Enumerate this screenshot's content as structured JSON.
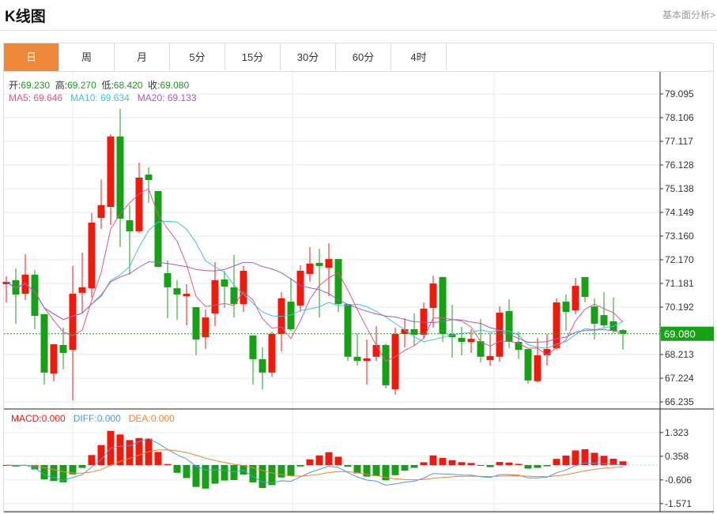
{
  "header": {
    "title": "K线图",
    "link": "基本面分析>"
  },
  "tabs": [
    {
      "label": "日",
      "active": true
    },
    {
      "label": "周"
    },
    {
      "label": "月"
    },
    {
      "label": "5分"
    },
    {
      "label": "15分"
    },
    {
      "label": "30分"
    },
    {
      "label": "60分"
    },
    {
      "label": "4时"
    }
  ],
  "info": {
    "open_label": "开:",
    "open": "69.230",
    "high_label": "高:",
    "high": "69.270",
    "low_label": "低:",
    "low": "68.420",
    "close_label": "收:",
    "close": "69.080",
    "ma5": "MA5: 69.646",
    "ma10": "MA10: 69.634",
    "ma20": "MA20: 69.133",
    "macd": "MACD:0.000",
    "diff": "DIFF:0.000",
    "dea": "DEA:0.000"
  },
  "colors": {
    "up": "#ee1a0e",
    "down": "#15a015",
    "ma5": "#e0558a",
    "ma10": "#3fc3d6",
    "ma20": "#a459c0",
    "diff": "#4a9ae0",
    "dea": "#f0832e",
    "active_tab": "#f0883a",
    "last_price_bg": "#15a015"
  },
  "chart_data": {
    "type": "candlestick",
    "price_ticks": [
      "79.095",
      "78.106",
      "77.117",
      "76.128",
      "75.138",
      "74.149",
      "73.160",
      "72.170",
      "71.181",
      "70.192",
      "69.080",
      "68.213",
      "67.224",
      "66.235"
    ],
    "last_price": "69.080",
    "macd_ticks": [
      "1.323",
      "0.358",
      "-0.606",
      "-1.571"
    ],
    "indicators": [
      "MA5",
      "MA10",
      "MA20",
      "MACD(12,26,9)"
    ],
    "candles": [
      [
        71.15,
        71.25,
        71.48,
        70.39
      ],
      [
        71.32,
        70.72,
        71.81,
        69.5
      ],
      [
        70.75,
        71.55,
        72.4,
        70.49
      ],
      [
        71.55,
        69.83,
        71.74,
        69.27
      ],
      [
        69.9,
        67.46,
        69.9,
        66.96
      ],
      [
        67.42,
        68.64,
        68.64,
        67.09
      ],
      [
        68.61,
        68.28,
        69.34,
        67.59
      ],
      [
        68.41,
        70.75,
        71.91,
        66.3
      ],
      [
        70.79,
        71.02,
        72.47,
        69.93
      ],
      [
        70.98,
        73.72,
        74.12,
        70.59
      ],
      [
        73.92,
        74.45,
        75.53,
        73.46
      ],
      [
        74.38,
        77.32,
        77.41,
        73.62
      ],
      [
        77.32,
        73.89,
        78.47,
        72.7
      ],
      [
        73.82,
        73.36,
        74.45,
        71.55
      ],
      [
        73.36,
        75.6,
        76.23,
        73.29
      ],
      [
        75.73,
        75.5,
        76.03,
        74.55
      ],
      [
        75.04,
        71.87,
        75.04,
        71.87
      ],
      [
        71.61,
        71.02,
        72.14,
        69.73
      ],
      [
        70.98,
        70.72,
        71.32,
        69.67
      ],
      [
        70.65,
        70.75,
        71.15,
        69.43
      ],
      [
        70.19,
        68.84,
        70.19,
        68.18
      ],
      [
        68.94,
        69.76,
        70.09,
        68.45
      ],
      [
        69.93,
        71.32,
        72.07,
        69.4
      ],
      [
        71.35,
        71.05,
        71.71,
        70.16
      ],
      [
        71.02,
        70.32,
        72.37,
        69.76
      ],
      [
        70.32,
        71.71,
        71.91,
        69.99
      ],
      [
        69.01,
        68.02,
        69.01,
        66.96
      ],
      [
        68.02,
        67.46,
        68.51,
        66.76
      ],
      [
        67.46,
        69.07,
        69.17,
        67.29
      ],
      [
        69.07,
        70.56,
        70.82,
        68.35
      ],
      [
        70.42,
        69.27,
        71.41,
        69.2
      ],
      [
        70.26,
        71.71,
        71.94,
        70.0
      ],
      [
        71.58,
        72.01,
        72.7,
        71.25
      ],
      [
        72.04,
        71.91,
        72.63,
        69.76
      ],
      [
        71.84,
        72.2,
        72.86,
        70.65
      ],
      [
        72.2,
        70.32,
        72.2,
        69.99
      ],
      [
        70.32,
        68.12,
        70.32,
        67.95
      ],
      [
        68.12,
        67.95,
        69.1,
        67.75
      ],
      [
        67.95,
        68.05,
        68.84,
        66.96
      ],
      [
        68.12,
        68.61,
        69.4,
        67.95
      ],
      [
        68.61,
        66.93,
        68.67,
        66.8
      ],
      [
        66.76,
        69.07,
        69.34,
        66.53
      ],
      [
        69.07,
        69.27,
        69.73,
        68.51
      ],
      [
        69.27,
        69.04,
        69.93,
        68.61
      ],
      [
        69.04,
        70.13,
        70.39,
        68.9
      ],
      [
        70.16,
        71.18,
        71.51,
        69.34
      ],
      [
        71.45,
        69.07,
        71.45,
        68.74
      ],
      [
        69.07,
        68.94,
        70.29,
        68.08
      ],
      [
        68.91,
        68.74,
        69.37,
        68.18
      ],
      [
        68.74,
        68.87,
        69.27,
        68.28
      ],
      [
        68.77,
        68.12,
        69.7,
        67.88
      ],
      [
        67.98,
        68.15,
        69.1,
        67.75
      ],
      [
        68.12,
        69.96,
        70.22,
        67.92
      ],
      [
        70.03,
        68.74,
        70.52,
        68.48
      ],
      [
        68.74,
        68.41,
        69.17,
        68.02
      ],
      [
        68.44,
        67.13,
        68.44,
        66.99
      ],
      [
        67.1,
        68.18,
        68.91,
        67.05
      ],
      [
        68.18,
        68.44,
        69.07,
        67.75
      ],
      [
        68.48,
        70.39,
        70.55,
        68.4
      ],
      [
        70.42,
        69.99,
        70.72,
        69.2
      ],
      [
        70.06,
        71.08,
        71.41,
        69.9
      ],
      [
        71.45,
        70.62,
        71.45,
        70.39
      ],
      [
        70.22,
        69.5,
        70.55,
        68.84
      ],
      [
        69.86,
        69.43,
        70.82,
        69.34
      ],
      [
        69.6,
        69.2,
        70.59,
        69.1
      ],
      [
        69.23,
        69.08,
        69.27,
        68.42
      ]
    ]
  }
}
